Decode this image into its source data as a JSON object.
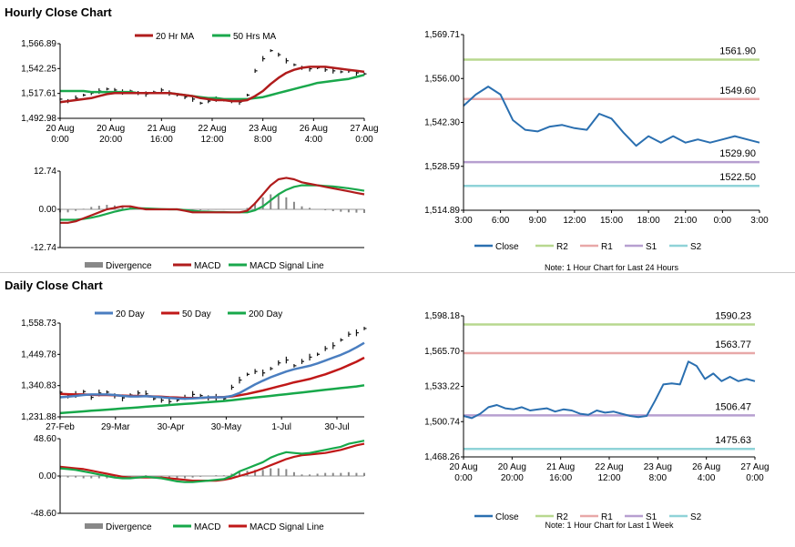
{
  "sections": {
    "hourly_title": "Hourly Close Chart",
    "daily_title": "Daily Close Chart"
  },
  "colors": {
    "ma20": "#b01c1c",
    "ma50": "#1aa84c",
    "price": "#111111",
    "close": "#2a6fb0",
    "r2": "#b8d88f",
    "r1": "#e8a8a8",
    "s1": "#b79fd0",
    "s2": "#8fd3d8",
    "macd_hist": "#888888",
    "ma20d": "#4a7ec0",
    "ma50d": "#c01818",
    "ma200d": "#17a84a"
  },
  "chart_data": [
    {
      "id": "hourly_price",
      "type": "line",
      "legend": [
        "20 Hr MA",
        "50 Hrs MA"
      ],
      "x_ticks": [
        "20 Aug\n0:00",
        "20 Aug\n20:00",
        "21 Aug\n16:00",
        "22 Aug\n12:00",
        "23 Aug\n8:00",
        "26 Aug\n4:00",
        "27 Aug\n0:00"
      ],
      "y_ticks": [
        "1,566.89",
        "1,542.25",
        "1,517.61",
        "1,492.98"
      ],
      "ylim": [
        1492.98,
        1566.89
      ],
      "series": [
        {
          "name": "Price",
          "values": [
            1512,
            1510,
            1513,
            1516,
            1518,
            1520,
            1522,
            1521,
            1519,
            1520,
            1518,
            1517,
            1519,
            1521,
            1518,
            1516,
            1514,
            1512,
            1508,
            1510,
            1512,
            1511,
            1510,
            1509,
            1516,
            1540,
            1552,
            1560,
            1556,
            1550,
            1546,
            1543,
            1542,
            1543,
            1541,
            1540,
            1539,
            1540,
            1538,
            1537
          ]
        },
        {
          "name": "20 Hr MA",
          "values": [
            1509,
            1510,
            1511,
            1512,
            1513,
            1515,
            1517,
            1518,
            1518,
            1518,
            1518,
            1518,
            1518,
            1518,
            1518,
            1517,
            1516,
            1515,
            1513,
            1512,
            1511,
            1511,
            1510,
            1510,
            1511,
            1515,
            1520,
            1527,
            1533,
            1538,
            1541,
            1543,
            1544,
            1544,
            1544,
            1543,
            1542,
            1541,
            1540,
            1539
          ]
        },
        {
          "name": "50 Hrs MA",
          "values": [
            1520,
            1520,
            1520,
            1520,
            1519,
            1519,
            1519,
            1519,
            1519,
            1519,
            1518,
            1518,
            1518,
            1518,
            1518,
            1517,
            1516,
            1515,
            1514,
            1513,
            1513,
            1512,
            1512,
            1512,
            1512,
            1513,
            1514,
            1516,
            1518,
            1520,
            1522,
            1524,
            1526,
            1528,
            1529,
            1530,
            1531,
            1532,
            1534,
            1536
          ]
        }
      ]
    },
    {
      "id": "hourly_macd",
      "type": "line",
      "legend": [
        "Divergence",
        "MACD",
        "MACD Signal Line"
      ],
      "y_ticks": [
        "12.74",
        "0.00",
        "-12.74"
      ],
      "ylim": [
        -12.74,
        12.74
      ],
      "series": [
        {
          "name": "MACD",
          "values": [
            -4.5,
            -4.5,
            -4,
            -3,
            -2,
            -1,
            0,
            0.5,
            1,
            1,
            0.5,
            0,
            0,
            0,
            0,
            0,
            -0.5,
            -1,
            -1,
            -1,
            -1,
            -1,
            -1,
            -1,
            -0.5,
            2,
            5,
            8,
            10,
            10.5,
            10,
            9,
            8.5,
            8,
            7.5,
            7,
            6.5,
            6,
            5.5,
            5
          ]
        },
        {
          "name": "MACD Signal Line",
          "values": [
            -3.5,
            -3.5,
            -3.5,
            -3.2,
            -2.8,
            -2.2,
            -1.5,
            -0.8,
            -0.2,
            0.2,
            0.4,
            0.3,
            0.2,
            0.1,
            0,
            0,
            -0.2,
            -0.5,
            -0.7,
            -0.8,
            -0.9,
            -0.9,
            -1,
            -1,
            -1,
            -0.3,
            1,
            3,
            5,
            6.5,
            7.5,
            8,
            8,
            8,
            7.8,
            7.6,
            7.3,
            7,
            6.6,
            6.2
          ]
        },
        {
          "name": "Divergence",
          "values": [
            -1,
            -1,
            -0.5,
            0.2,
            0.8,
            1.2,
            1.5,
            1.3,
            1.2,
            0.8,
            0.1,
            -0.3,
            -0.2,
            -0.1,
            0,
            0,
            -0.3,
            -0.5,
            -0.3,
            -0.2,
            -0.1,
            -0.1,
            0,
            0,
            0.5,
            2.3,
            4,
            5,
            5,
            4,
            2.5,
            1,
            0.5,
            0,
            -0.3,
            -0.6,
            -0.8,
            -1,
            -1.1,
            -1.2
          ]
        }
      ]
    },
    {
      "id": "hourly_pivots",
      "type": "line",
      "legend": [
        "Close",
        "R2",
        "R1",
        "S1",
        "S2"
      ],
      "note": "Note: 1 Hour Chart for Last 24 Hours",
      "x_ticks": [
        "3:00",
        "6:00",
        "9:00",
        "12:00",
        "15:00",
        "18:00",
        "21:00",
        "0:00",
        "3:00"
      ],
      "y_ticks": [
        "1,569.71",
        "1,556.00",
        "1,542.30",
        "1,528.59",
        "1,514.89"
      ],
      "ylim": [
        1514.89,
        1569.71
      ],
      "levels": [
        {
          "name": "R2",
          "value": 1561.9,
          "label": "1561.90"
        },
        {
          "name": "R1",
          "value": 1549.6,
          "label": "1549.60"
        },
        {
          "name": "S1",
          "value": 1529.9,
          "label": "1529.90"
        },
        {
          "name": "S2",
          "value": 1522.5,
          "label": "1522.50"
        }
      ],
      "series": [
        {
          "name": "Close",
          "values": [
            1547.5,
            1551,
            1553.5,
            1551,
            1543,
            1540,
            1539.5,
            1541,
            1541.5,
            1540.5,
            1540,
            1545,
            1543.5,
            1539,
            1535,
            1538,
            1536,
            1538,
            1536,
            1537,
            1536,
            1537,
            1538,
            1537,
            1536
          ]
        }
      ]
    },
    {
      "id": "daily_price",
      "type": "line",
      "legend": [
        "20 Day",
        "50 Day",
        "200 Day"
      ],
      "x_ticks": [
        "27-Feb",
        "29-Mar",
        "30-Apr",
        "30-May",
        "1-Jul",
        "30-Jul"
      ],
      "y_ticks": [
        "1,558.73",
        "1,449.78",
        "1,340.83",
        "1,231.88"
      ],
      "ylim": [
        1231.88,
        1558.73
      ],
      "series": [
        {
          "name": "Price",
          "values": [
            1318,
            1305,
            1310,
            1320,
            1300,
            1315,
            1318,
            1305,
            1298,
            1308,
            1315,
            1312,
            1295,
            1290,
            1285,
            1290,
            1300,
            1310,
            1306,
            1298,
            1300,
            1295,
            1335,
            1360,
            1380,
            1390,
            1385,
            1400,
            1420,
            1430,
            1410,
            1425,
            1440,
            1450,
            1470,
            1480,
            1500,
            1520,
            1525,
            1540
          ]
        },
        {
          "name": "20 Day",
          "values": [
            1300,
            1302,
            1305,
            1308,
            1310,
            1310,
            1310,
            1308,
            1305,
            1303,
            1303,
            1304,
            1302,
            1300,
            1298,
            1296,
            1295,
            1296,
            1298,
            1300,
            1300,
            1300,
            1305,
            1315,
            1330,
            1345,
            1358,
            1370,
            1380,
            1390,
            1398,
            1404,
            1410,
            1418,
            1428,
            1438,
            1448,
            1460,
            1474,
            1490
          ]
        },
        {
          "name": "50 Day",
          "values": [
            1312,
            1311,
            1310,
            1310,
            1309,
            1308,
            1308,
            1307,
            1306,
            1305,
            1305,
            1304,
            1303,
            1302,
            1300,
            1299,
            1298,
            1298,
            1298,
            1299,
            1300,
            1301,
            1303,
            1307,
            1312,
            1318,
            1324,
            1331,
            1338,
            1345,
            1352,
            1358,
            1364,
            1372,
            1380,
            1390,
            1400,
            1412,
            1424,
            1438
          ]
        },
        {
          "name": "200 Day",
          "values": [
            1245,
            1247,
            1249,
            1251,
            1253,
            1255,
            1257,
            1259,
            1261,
            1263,
            1265,
            1267,
            1269,
            1271,
            1273,
            1275,
            1277,
            1279,
            1281,
            1283,
            1285,
            1287,
            1290,
            1293,
            1296,
            1299,
            1302,
            1305,
            1308,
            1311,
            1314,
            1317,
            1320,
            1323,
            1326,
            1329,
            1332,
            1335,
            1338,
            1342
          ]
        }
      ]
    },
    {
      "id": "daily_macd",
      "type": "line",
      "legend": [
        "Divergence",
        "MACD",
        "MACD Signal Line"
      ],
      "y_ticks": [
        "48.60",
        "0.00",
        "-48.60"
      ],
      "ylim": [
        -48.6,
        48.6
      ],
      "series": [
        {
          "name": "MACD",
          "values": [
            10,
            9,
            8,
            6,
            4,
            2,
            0,
            -2,
            -3,
            -3,
            -2,
            -1,
            -2,
            -3,
            -5,
            -7,
            -8,
            -8,
            -7,
            -6,
            -5,
            -4,
            0,
            6,
            10,
            14,
            18,
            24,
            28,
            31,
            30,
            29,
            30,
            32,
            34,
            36,
            38,
            42,
            44,
            46
          ]
        },
        {
          "name": "MACD Signal Line",
          "values": [
            12,
            11,
            10,
            9,
            7,
            5,
            3,
            1,
            -1,
            -2,
            -2,
            -2,
            -2,
            -2,
            -3,
            -4,
            -5,
            -6,
            -6,
            -6,
            -6,
            -5,
            -3,
            0,
            3,
            6,
            10,
            14,
            18,
            22,
            25,
            27,
            28,
            29,
            30,
            32,
            34,
            37,
            40,
            42
          ]
        },
        {
          "name": "Divergence",
          "values": [
            -2,
            -2,
            -2,
            -3,
            -3,
            -3,
            -3,
            -3,
            -2,
            -1,
            0,
            1,
            0,
            -1,
            -2,
            -3,
            -3,
            -2,
            -1,
            0,
            1,
            1,
            3,
            6,
            7,
            8,
            8,
            10,
            10,
            9,
            5,
            2,
            2,
            3,
            4,
            4,
            4,
            5,
            4,
            4
          ]
        }
      ]
    },
    {
      "id": "daily_pivots",
      "type": "line",
      "legend": [
        "Close",
        "R2",
        "R1",
        "S1",
        "S2"
      ],
      "note": "Note: 1 Hour Chart for Last 1 Week",
      "x_ticks": [
        "20 Aug\n0:00",
        "20 Aug\n20:00",
        "21 Aug\n16:00",
        "22 Aug\n12:00",
        "23 Aug\n8:00",
        "26 Aug\n4:00",
        "27 Aug\n0:00"
      ],
      "y_ticks": [
        "1,598.18",
        "1,565.70",
        "1,533.22",
        "1,500.74",
        "1,468.26"
      ],
      "ylim": [
        1468.26,
        1598.18
      ],
      "levels": [
        {
          "name": "R2",
          "value": 1590.23,
          "label": "1590.23"
        },
        {
          "name": "R1",
          "value": 1563.77,
          "label": "1563.77"
        },
        {
          "name": "S1",
          "value": 1506.47,
          "label": "1506.47"
        },
        {
          "name": "S2",
          "value": 1475.63,
          "label": "1475.63"
        }
      ],
      "series": [
        {
          "name": "Close",
          "values": [
            1506,
            1504,
            1508,
            1514,
            1516,
            1513,
            1512,
            1514,
            1511,
            1512,
            1513,
            1510,
            1512,
            1511,
            1508,
            1507,
            1511,
            1509,
            1510,
            1508,
            1506,
            1505,
            1506,
            1520,
            1535,
            1536,
            1535,
            1556,
            1552,
            1540,
            1545,
            1538,
            1542,
            1538,
            1540,
            1538
          ]
        }
      ]
    }
  ]
}
